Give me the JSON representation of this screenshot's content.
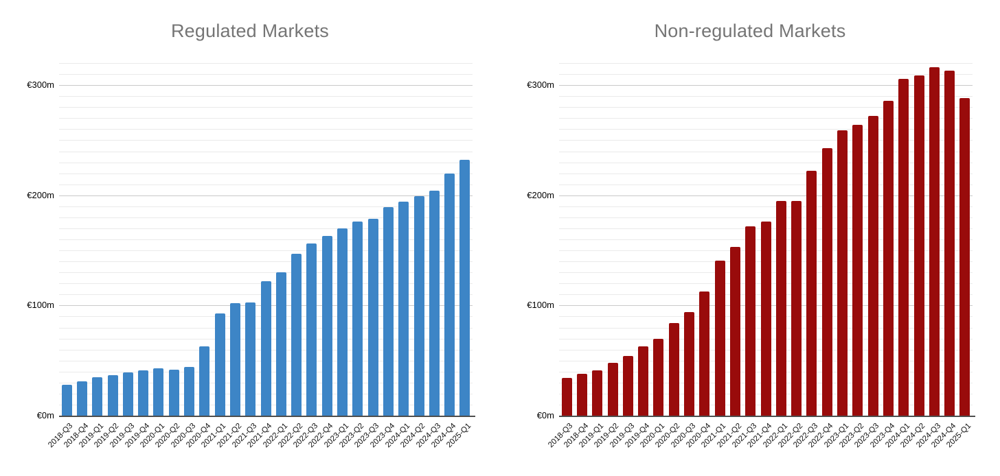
{
  "figure": {
    "background_color": "#ffffff",
    "title_color": "#757575",
    "grid_minor_color": "#eaeaea",
    "grid_major_color": "#c9c9c9",
    "axis_line_color": "#4d4d4d",
    "tick_label_color": "#000000"
  },
  "chart_data": [
    {
      "type": "bar",
      "title": "Regulated Markets",
      "bar_color": "#3d85c6",
      "categories": [
        "2018-Q3",
        "2018-Q4",
        "2019-Q1",
        "2019-Q2",
        "2019-Q3",
        "2019-Q4",
        "2020-Q1",
        "2020-Q2",
        "2020-Q3",
        "2020-Q4",
        "2021-Q1",
        "2021-Q2",
        "2021-Q3",
        "2021-Q4",
        "2022-Q1",
        "2022-Q2",
        "2022-Q3",
        "2022-Q4",
        "2023-Q1",
        "2023-Q2",
        "2023-Q3",
        "2023-Q4",
        "2024-Q1",
        "2024-Q2",
        "2024-Q3",
        "2024-Q4",
        "2025-Q1"
      ],
      "values": [
        28,
        31,
        35,
        37,
        39,
        41,
        43,
        42,
        44,
        63,
        93,
        102,
        103,
        122,
        130,
        147,
        156,
        163,
        170,
        176,
        179,
        189,
        194,
        199,
        204,
        220,
        232
      ],
      "unit": "€m",
      "xlabel": "",
      "ylabel": "",
      "ylim": [
        0,
        320
      ],
      "grid": true,
      "minor_grid_step": 10,
      "legend": "none",
      "yticks": [
        {
          "value": 0,
          "label": "€0m"
        },
        {
          "value": 100,
          "label": "€100m"
        },
        {
          "value": 200,
          "label": "€200m"
        },
        {
          "value": 300,
          "label": "€300m"
        }
      ]
    },
    {
      "type": "bar",
      "title": "Non-regulated Markets",
      "bar_color": "#990b0b",
      "categories": [
        "2018-Q3",
        "2018-Q4",
        "2019-Q1",
        "2019-Q2",
        "2019-Q3",
        "2019-Q4",
        "2020-Q1",
        "2020-Q2",
        "2020-Q3",
        "2020-Q4",
        "2021-Q1",
        "2021-Q2",
        "2021-Q3",
        "2021-Q4",
        "2022-Q1",
        "2022-Q2",
        "2022-Q3",
        "2022-Q4",
        "2023-Q1",
        "2023-Q2",
        "2023-Q3",
        "2023-Q4",
        "2024-Q1",
        "2024-Q2",
        "2024-Q3",
        "2024-Q4",
        "2025-Q1"
      ],
      "values": [
        34,
        38,
        41,
        48,
        54,
        63,
        70,
        84,
        94,
        113,
        141,
        153,
        172,
        176,
        195,
        195,
        222,
        243,
        259,
        264,
        272,
        286,
        306,
        309,
        316,
        313,
        288
      ],
      "unit": "€m",
      "xlabel": "",
      "ylabel": "",
      "ylim": [
        0,
        320
      ],
      "grid": true,
      "minor_grid_step": 10,
      "legend": "none",
      "yticks": [
        {
          "value": 0,
          "label": "€0m"
        },
        {
          "value": 100,
          "label": "€100m"
        },
        {
          "value": 200,
          "label": "€200m"
        },
        {
          "value": 300,
          "label": "€300m"
        }
      ]
    }
  ]
}
